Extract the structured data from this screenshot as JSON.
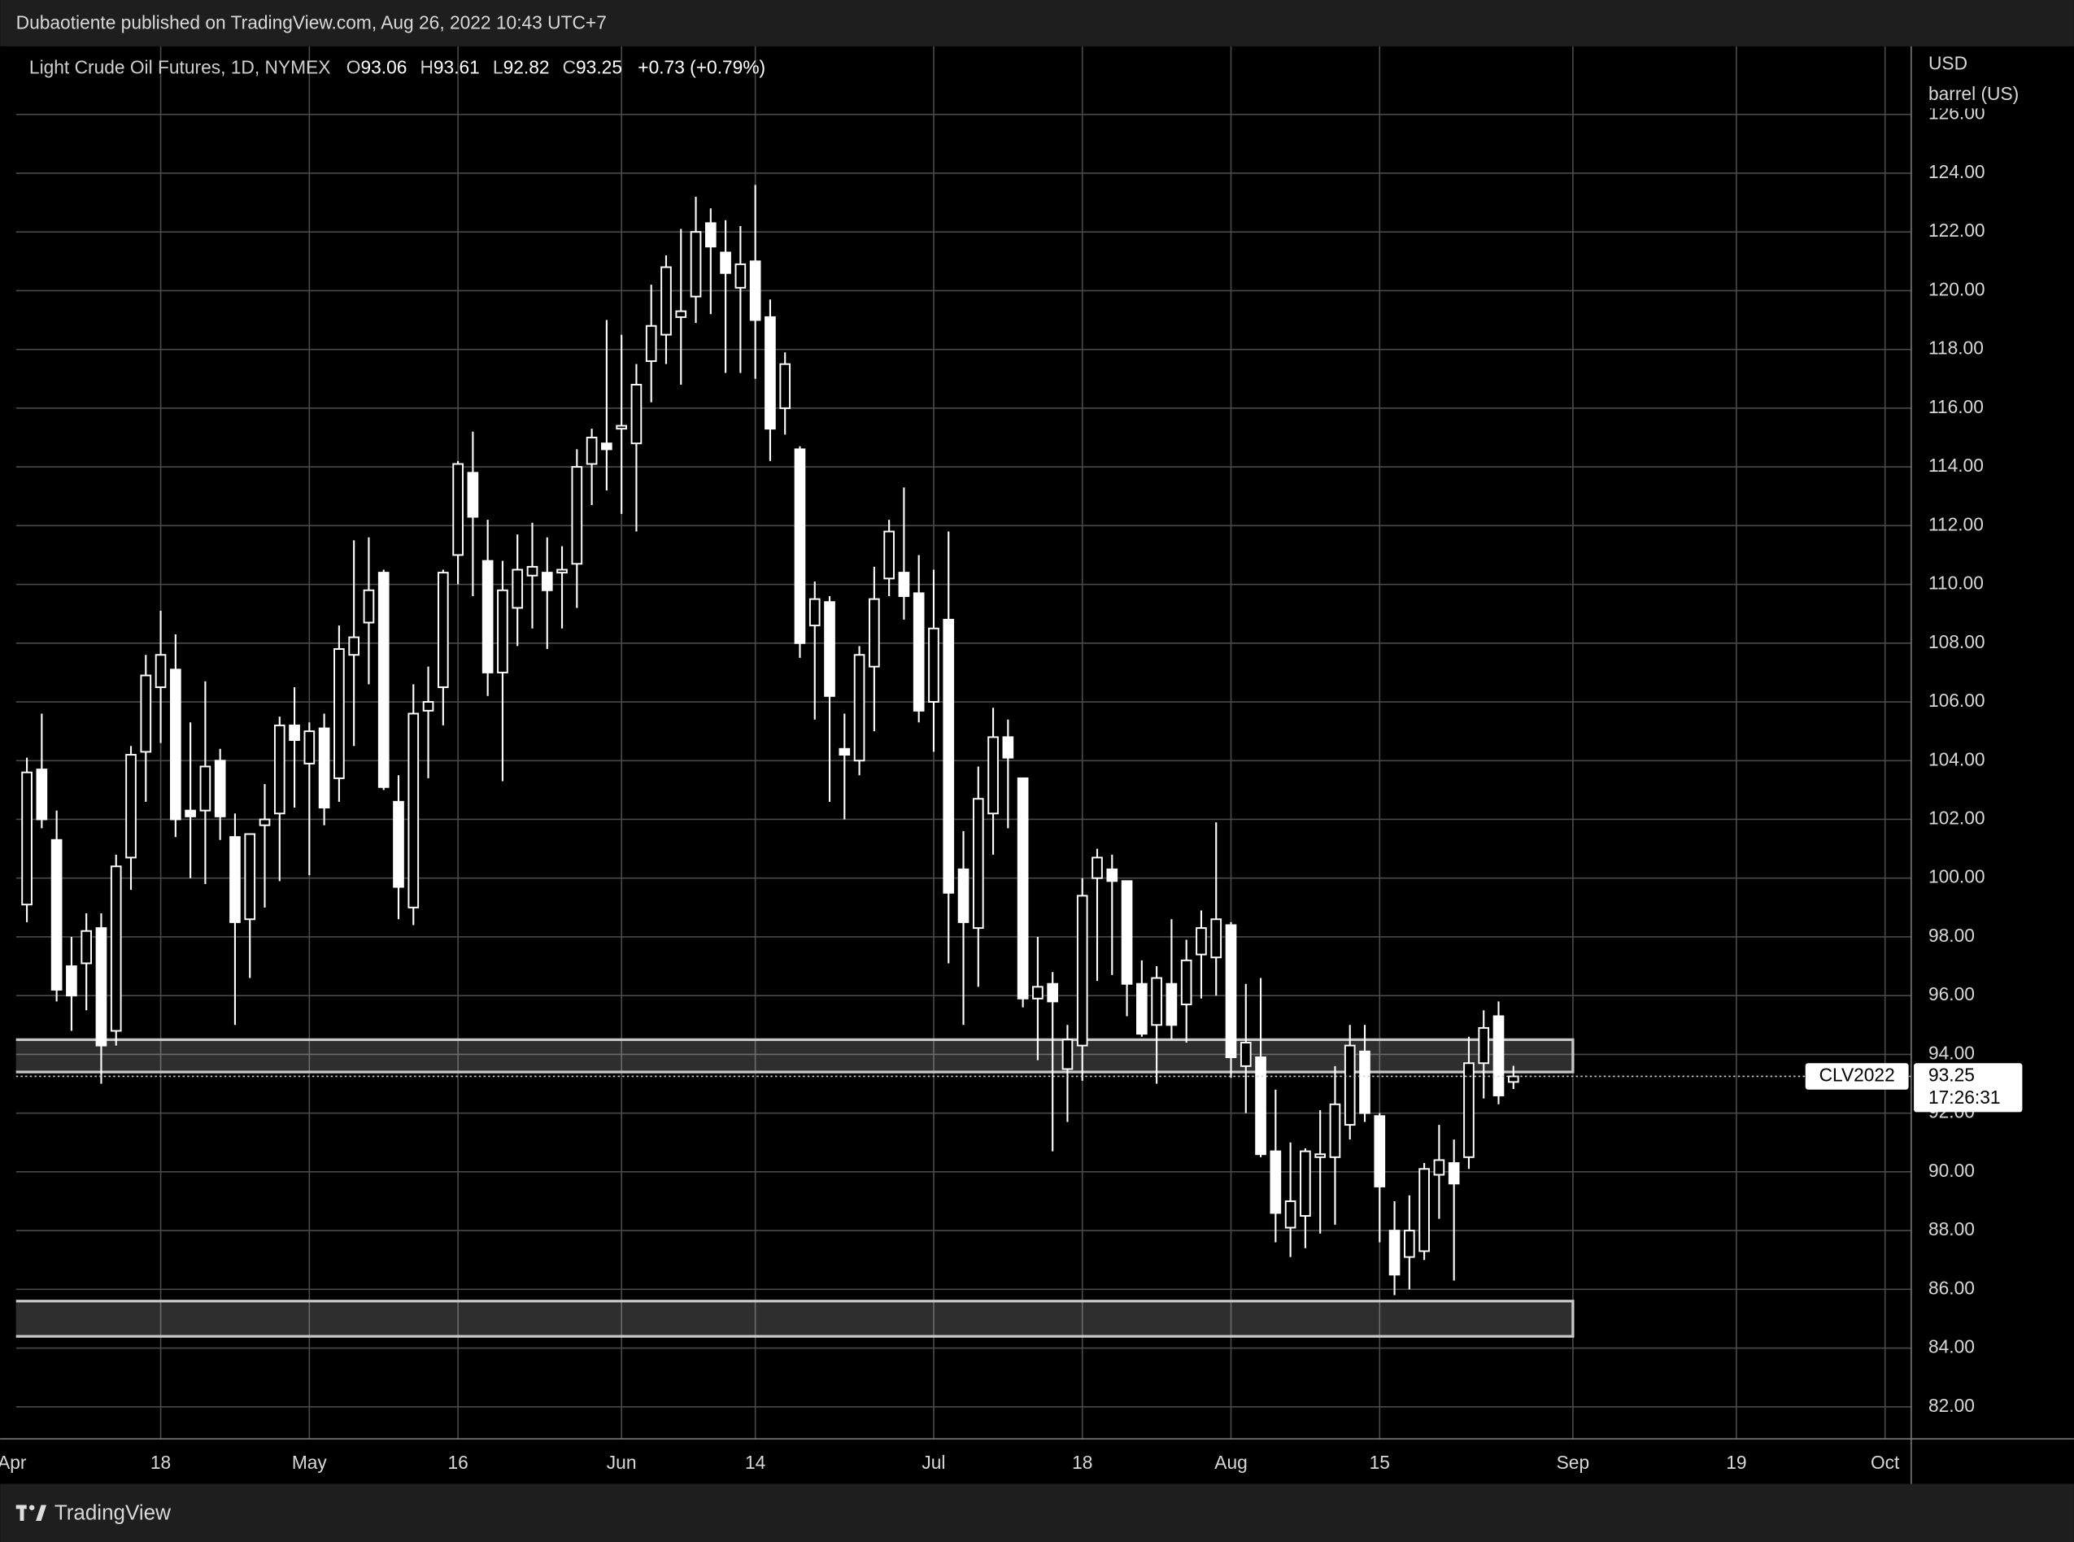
{
  "header": {
    "publisher": "Dubaotiente published on TradingView.com, Aug 26, 2022 10:43 UTC+7"
  },
  "footer": {
    "brand": "TradingView"
  },
  "chart_data": {
    "type": "candlestick",
    "title": "Light Crude Oil Futures, 1D, NYMEX",
    "ohlc_prefixes": [
      "O",
      "H",
      "L",
      "C"
    ],
    "change": "+0.73 (+0.79%)",
    "symbol": "CLV2022",
    "countdown": "17:26:31",
    "y_unit": [
      "USD",
      "barrel (US)"
    ],
    "categories": [
      "Apr",
      null,
      null,
      null,
      null,
      null,
      null,
      null,
      null,
      null,
      "18",
      null,
      null,
      null,
      null,
      null,
      null,
      null,
      null,
      null,
      "May",
      null,
      null,
      null,
      null,
      null,
      null,
      null,
      null,
      null,
      "16",
      null,
      null,
      null,
      null,
      null,
      null,
      null,
      null,
      null,
      null,
      "Jun",
      null,
      null,
      null,
      null,
      null,
      null,
      null,
      null,
      "14",
      null,
      null,
      null,
      null,
      null,
      null,
      null,
      null,
      null,
      null,
      null,
      "Jul",
      null,
      null,
      null,
      null,
      null,
      null,
      null,
      null,
      null,
      "18",
      null,
      null,
      null,
      null,
      null,
      null,
      null,
      null,
      null,
      "Aug",
      null,
      null,
      null,
      null,
      null,
      null,
      null,
      null,
      null,
      "15",
      null,
      null,
      null,
      null,
      null,
      null,
      null,
      null,
      null,
      null,
      null,
      null,
      "Sep",
      null,
      null,
      null,
      null,
      null,
      null,
      null,
      null,
      null,
      null,
      "19",
      null,
      null,
      null,
      null,
      null,
      null,
      null,
      null,
      null,
      "Oct"
    ],
    "open": [
      null,
      99.1,
      103.7,
      101.3,
      97.0,
      97.1,
      98.3,
      94.8,
      100.7,
      104.3,
      106.5,
      107.1,
      102.3,
      102.3,
      104.0,
      101.4,
      98.6,
      101.8,
      102.2,
      105.2,
      103.9,
      105.1,
      103.4,
      107.6,
      108.7,
      110.4,
      102.6,
      99.0,
      105.7,
      106.5,
      111.0,
      113.8,
      110.8,
      107.0,
      109.2,
      110.3,
      110.4,
      110.4,
      110.7,
      114.1,
      114.8,
      115.3,
      114.8,
      117.6,
      118.5,
      119.1,
      119.8,
      122.3,
      121.3,
      120.1,
      121.0,
      119.1,
      116.0,
      114.6,
      108.6,
      109.4,
      104.4,
      104.0,
      107.2,
      110.2,
      110.4,
      109.7,
      106.0,
      108.8,
      100.3,
      98.3,
      102.2,
      104.8,
      103.4,
      95.9,
      96.4,
      93.5,
      94.3,
      100.0,
      100.3,
      99.9,
      96.4,
      95.0,
      96.4,
      95.7,
      97.4,
      97.3,
      98.4,
      93.6,
      93.9,
      90.7,
      88.1,
      88.5,
      90.5,
      90.5,
      91.6,
      94.1,
      91.9,
      88.0,
      87.1,
      87.3,
      89.9,
      90.3,
      90.5,
      93.7,
      95.3,
      93.06,
      null,
      null,
      null,
      null,
      null,
      null,
      null,
      null,
      null,
      null,
      null,
      null,
      null,
      null,
      null,
      null,
      null,
      null,
      null,
      null,
      null,
      null,
      null,
      null,
      null
    ],
    "high": [
      null,
      104.1,
      105.6,
      102.3,
      98.0,
      98.8,
      98.8,
      100.8,
      104.5,
      107.6,
      109.1,
      108.3,
      105.3,
      106.7,
      104.4,
      102.2,
      101.5,
      103.2,
      105.5,
      106.5,
      105.3,
      105.6,
      108.6,
      111.5,
      111.6,
      110.5,
      103.5,
      106.6,
      107.2,
      110.5,
      114.2,
      115.2,
      112.2,
      110.8,
      111.7,
      112.1,
      111.6,
      111.3,
      114.6,
      115.3,
      119.0,
      118.5,
      117.5,
      120.2,
      121.2,
      122.1,
      123.2,
      122.8,
      122.4,
      122.2,
      123.6,
      119.7,
      117.9,
      114.7,
      110.1,
      109.6,
      105.6,
      107.9,
      110.6,
      112.2,
      113.3,
      111.0,
      110.5,
      111.8,
      101.6,
      103.8,
      105.8,
      105.4,
      103.4,
      98.0,
      96.8,
      95.0,
      100.0,
      101.0,
      100.8,
      99.9,
      97.2,
      97.0,
      98.6,
      97.9,
      98.9,
      101.9,
      98.5,
      96.4,
      96.6,
      92.8,
      91.0,
      90.8,
      92.1,
      93.6,
      95.0,
      95.0,
      92.0,
      89.0,
      89.2,
      90.3,
      91.6,
      91.1,
      94.6,
      95.5,
      95.8,
      93.61,
      null,
      null,
      null,
      null,
      null,
      null,
      null,
      null,
      null,
      null,
      null,
      null,
      null,
      null,
      null,
      null,
      null,
      null,
      null,
      null,
      null,
      null,
      null,
      null,
      null
    ],
    "low": [
      null,
      98.5,
      101.7,
      95.8,
      94.8,
      95.5,
      93.0,
      94.3,
      99.6,
      102.6,
      104.6,
      101.4,
      100.0,
      99.8,
      101.3,
      95.0,
      96.6,
      99.0,
      99.9,
      102.4,
      100.1,
      101.8,
      102.6,
      104.5,
      106.6,
      103.0,
      98.6,
      98.4,
      103.4,
      105.2,
      110.0,
      109.6,
      106.2,
      103.3,
      107.9,
      108.5,
      107.8,
      108.5,
      109.2,
      112.7,
      113.2,
      112.4,
      111.8,
      116.2,
      117.5,
      116.8,
      118.9,
      119.2,
      117.2,
      117.2,
      117.0,
      114.2,
      115.1,
      107.5,
      105.4,
      102.6,
      102.0,
      103.5,
      105.0,
      109.6,
      108.8,
      105.3,
      104.3,
      97.1,
      95.0,
      96.3,
      100.8,
      101.7,
      95.6,
      93.8,
      90.7,
      91.7,
      93.1,
      96.5,
      96.7,
      95.3,
      94.6,
      93.0,
      94.5,
      94.4,
      95.9,
      96.0,
      93.2,
      92.0,
      90.5,
      87.6,
      87.1,
      87.4,
      87.9,
      88.2,
      91.1,
      91.7,
      87.6,
      85.8,
      86.0,
      87.0,
      88.4,
      86.3,
      90.1,
      92.5,
      92.3,
      92.82,
      null,
      null,
      null,
      null,
      null,
      null,
      null,
      null,
      null,
      null,
      null,
      null,
      null,
      null,
      null,
      null,
      null,
      null,
      null,
      null,
      null,
      null,
      null,
      null,
      null
    ],
    "close": [
      null,
      103.6,
      102.0,
      96.2,
      96.0,
      98.2,
      94.3,
      100.4,
      104.2,
      106.9,
      107.6,
      102.0,
      102.1,
      103.8,
      102.1,
      98.5,
      101.5,
      102.0,
      105.2,
      104.7,
      105.0,
      102.4,
      107.8,
      108.2,
      109.8,
      103.1,
      99.7,
      105.6,
      106.0,
      110.4,
      114.1,
      112.3,
      107.0,
      109.8,
      110.5,
      110.6,
      109.8,
      110.5,
      114.0,
      115.0,
      114.6,
      115.4,
      116.8,
      118.8,
      120.8,
      119.3,
      122.0,
      121.5,
      120.6,
      120.9,
      119.0,
      115.3,
      117.5,
      108.0,
      109.5,
      106.2,
      104.2,
      107.6,
      109.5,
      111.8,
      109.6,
      105.7,
      108.5,
      99.5,
      98.5,
      102.7,
      104.8,
      104.1,
      95.9,
      96.3,
      95.8,
      94.5,
      99.4,
      100.7,
      99.9,
      96.4,
      94.7,
      96.6,
      95.0,
      97.2,
      98.3,
      98.6,
      93.9,
      94.4,
      90.6,
      88.6,
      89.0,
      90.7,
      90.6,
      92.3,
      94.3,
      92.0,
      89.5,
      86.5,
      88.0,
      90.1,
      90.4,
      89.6,
      93.7,
      94.9,
      92.6,
      93.25,
      null,
      null,
      null,
      null,
      null,
      null,
      null,
      null,
      null,
      null,
      null,
      null,
      null,
      null,
      null,
      null,
      null,
      null,
      null,
      null,
      null,
      null,
      null,
      null,
      null
    ],
    "up_color": "#000000",
    "down_color": "#ffffff",
    "wick_color": "#ffffff",
    "ylim": [
      80.91,
      128.32
    ],
    "yticks": [
      {
        "value": 82,
        "label": "82.00"
      },
      {
        "value": 84,
        "label": "84.00"
      },
      {
        "value": 86,
        "label": "86.00"
      },
      {
        "value": 88,
        "label": "88.00"
      },
      {
        "value": 90,
        "label": "90.00"
      },
      {
        "value": 92,
        "label": "92.00"
      },
      {
        "value": 94,
        "label": "94.00"
      },
      {
        "value": 96,
        "label": "96.00"
      },
      {
        "value": 98,
        "label": "98.00"
      },
      {
        "value": 100,
        "label": "100.00"
      },
      {
        "value": 102,
        "label": "102.00"
      },
      {
        "value": 104,
        "label": "104.00"
      },
      {
        "value": 106,
        "label": "106.00"
      },
      {
        "value": 108,
        "label": "108.00"
      },
      {
        "value": 110,
        "label": "110.00"
      },
      {
        "value": 112,
        "label": "112.00"
      },
      {
        "value": 114,
        "label": "114.00"
      },
      {
        "value": 116,
        "label": "116.00"
      },
      {
        "value": 118,
        "label": "118.00"
      },
      {
        "value": 120,
        "label": "120.00"
      },
      {
        "value": 122,
        "label": "122.00"
      },
      {
        "value": 124,
        "label": "124.00"
      },
      {
        "value": 126,
        "label": "126.00"
      }
    ],
    "zones": [
      {
        "top": 94.5,
        "bottom": 93.4
      },
      {
        "top": 85.6,
        "bottom": 84.4
      }
    ],
    "grid": true
  }
}
